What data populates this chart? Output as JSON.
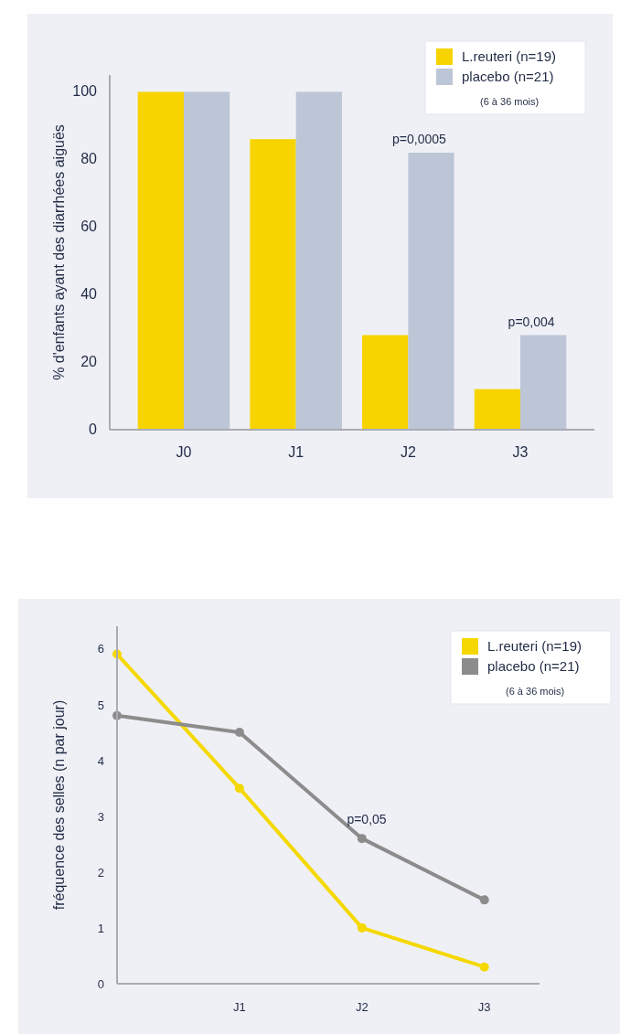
{
  "chart_data": [
    {
      "type": "bar",
      "ylabel": "% d'enfants ayant des diarrhées aiguës",
      "categories": [
        "J0",
        "J1",
        "J2",
        "J3"
      ],
      "series": [
        {
          "name": "L.reuteri (n=19)",
          "color": "#f7d400",
          "values": [
            100,
            86,
            28,
            12
          ]
        },
        {
          "name": "placebo (n=21)",
          "color": "#bcc6d6",
          "values": [
            100,
            100,
            82,
            28
          ]
        }
      ],
      "ylim": [
        0,
        105
      ],
      "yticks": [
        0,
        20,
        40,
        60,
        80,
        100
      ],
      "legend": "top right",
      "legend_title": "(6 à 36 mois)",
      "grid": false,
      "annotations": [
        {
          "text": "p=0,0005",
          "x": "J2",
          "y": 82
        },
        {
          "text": "p=0,004",
          "x": "J3",
          "y": 28
        }
      ]
    },
    {
      "type": "line",
      "ylabel": "fréquence des selles (n par jour)",
      "categories": [
        null,
        "J1",
        "J2",
        "J3"
      ],
      "series": [
        {
          "name": "L.reuteri (n=19)",
          "color": "#f5d800",
          "values": [
            5.9,
            3.5,
            1.0,
            0.3
          ]
        },
        {
          "name": "placebo (n=21)",
          "color": "#8c8c8c",
          "values": [
            4.8,
            4.5,
            2.6,
            1.5
          ]
        }
      ],
      "ylim": [
        0,
        6.4
      ],
      "yticks": [
        0,
        1,
        2,
        3,
        4,
        5,
        6
      ],
      "legend": "top right",
      "legend_title": "(6 à 36 mois)",
      "grid": false,
      "marker": "circle",
      "line_style": "solid",
      "annotations": [
        "p=0,05"
      ]
    }
  ]
}
